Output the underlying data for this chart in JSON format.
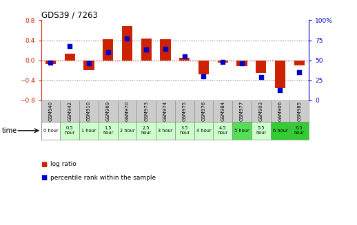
{
  "title": "GDS39 / 7263",
  "samples": [
    "GSM940",
    "GSM942",
    "GSM910",
    "GSM969",
    "GSM970",
    "GSM973",
    "GSM974",
    "GSM975",
    "GSM976",
    "GSM984",
    "GSM977",
    "GSM903",
    "GSM906",
    "GSM985"
  ],
  "time_labels": [
    "0 hour",
    "0.5\nhour",
    "1 hour",
    "1.5\nhour",
    "2 hour",
    "2.5\nhour",
    "3 hour",
    "3.5\nhour",
    "4 hour",
    "4.5\nhour",
    "5 hour",
    "5.5\nhour",
    "6 hour",
    "6.5\nhour"
  ],
  "log_ratio": [
    -0.07,
    0.13,
    -0.2,
    0.42,
    0.68,
    0.44,
    0.42,
    0.05,
    -0.28,
    -0.05,
    -0.12,
    -0.25,
    -0.56,
    -0.1
  ],
  "percentile": [
    47,
    68,
    46,
    60,
    77,
    63,
    64,
    55,
    30,
    48,
    46,
    29,
    13,
    35
  ],
  "ylim_left": [
    -0.8,
    0.8
  ],
  "ylim_right": [
    0,
    100
  ],
  "yticks_left": [
    -0.8,
    -0.4,
    0.0,
    0.4,
    0.8
  ],
  "yticks_right": [
    0,
    25,
    50,
    75,
    100
  ],
  "bar_color": "#cc2200",
  "dot_color": "#0000cc",
  "zero_line_color": "#cc2200",
  "grid_color": "#555555",
  "bg_color": "#ffffff",
  "time_bg_colors": [
    "#ffffff",
    "#ccffcc",
    "#ccffcc",
    "#ccffcc",
    "#ccffcc",
    "#ccffcc",
    "#ccffcc",
    "#ccffcc",
    "#ccffcc",
    "#ccffcc",
    "#55dd55",
    "#ccffcc",
    "#33cc33",
    "#33cc33"
  ],
  "sample_bg_color": "#cccccc",
  "legend_log_ratio": "log ratio",
  "legend_percentile": "percentile rank within the sample"
}
